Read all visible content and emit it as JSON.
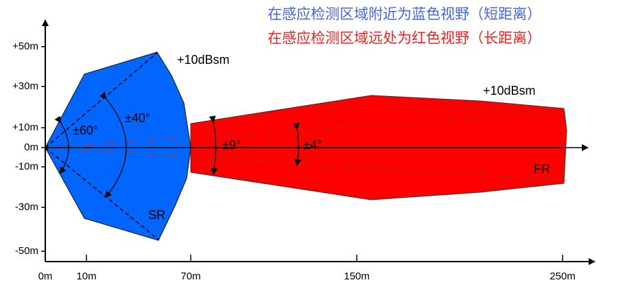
{
  "captions": {
    "near": "在感应检测区域附近为蓝色视野（短距离）",
    "far": "在感应检测区域远处为红色视野（长距离）"
  },
  "y_axis": {
    "labels": [
      "+50m",
      "+30m",
      "+10m",
      "0m",
      "-10m",
      "-30m",
      "-50m"
    ]
  },
  "x_axis": {
    "labels": [
      "0m",
      "10m",
      "70m",
      "150m",
      "250m"
    ]
  },
  "short_range": {
    "rcs": "+10dBsm",
    "wide_angle": "±60°",
    "narrow_angle": "±40°",
    "label": "SR"
  },
  "long_range": {
    "rcs": "+10dBsm",
    "wide_angle": "±9°",
    "narrow_angle": "±4°",
    "label": "FR"
  }
}
